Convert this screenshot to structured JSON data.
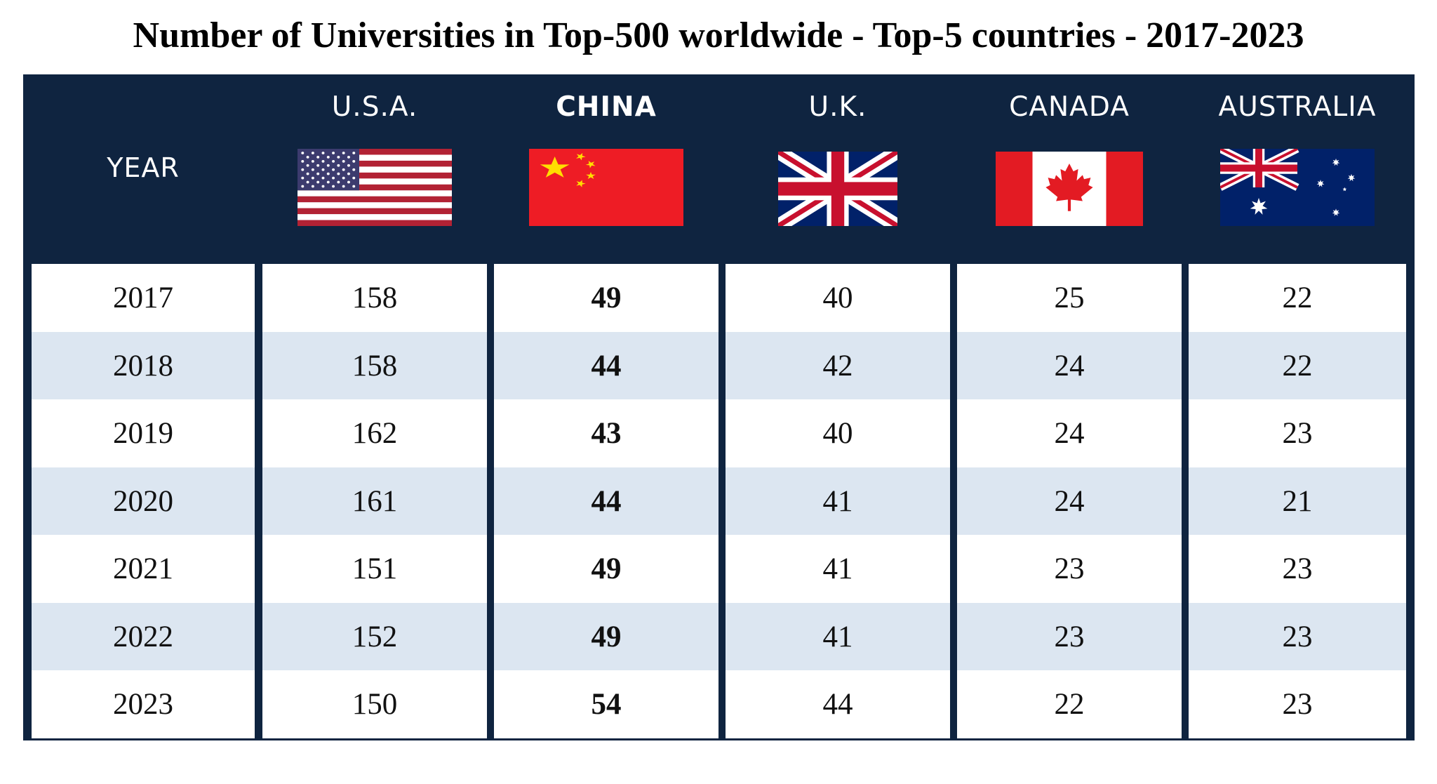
{
  "chart_data": {
    "type": "table",
    "title": "Number of Universities in Top-500 worldwide - Top-5 countries - 2017-2023",
    "columns": [
      {
        "key": "year",
        "label": "YEAR"
      },
      {
        "key": "usa",
        "label": "U.S.A.",
        "flag_icon": "usa-flag-icon"
      },
      {
        "key": "china",
        "label": "CHINA",
        "flag_icon": "china-flag-icon",
        "emphasized": true
      },
      {
        "key": "uk",
        "label": "U.K.",
        "flag_icon": "uk-flag-icon"
      },
      {
        "key": "canada",
        "label": "CANADA",
        "flag_icon": "canada-flag-icon"
      },
      {
        "key": "australia",
        "label": "AUSTRALIA",
        "flag_icon": "australia-flag-icon"
      }
    ],
    "rows": [
      {
        "year": "2017",
        "usa": 158,
        "china": 49,
        "uk": 40,
        "canada": 25,
        "australia": 22
      },
      {
        "year": "2018",
        "usa": 158,
        "china": 44,
        "uk": 42,
        "canada": 24,
        "australia": 22
      },
      {
        "year": "2019",
        "usa": 162,
        "china": 43,
        "uk": 40,
        "canada": 24,
        "australia": 23
      },
      {
        "year": "2020",
        "usa": 161,
        "china": 44,
        "uk": 41,
        "canada": 24,
        "australia": 21
      },
      {
        "year": "2021",
        "usa": 151,
        "china": 49,
        "uk": 41,
        "canada": 23,
        "australia": 23
      },
      {
        "year": "2022",
        "usa": 152,
        "china": 49,
        "uk": 41,
        "canada": 23,
        "australia": 23
      },
      {
        "year": "2023",
        "usa": 150,
        "china": 54,
        "uk": 44,
        "canada": 22,
        "australia": 23
      }
    ],
    "colors": {
      "header_background": "#0f2440",
      "header_text": "#ffffff",
      "row_odd": "#ffffff",
      "row_even": "#dce6f1",
      "body_text": "#111111"
    }
  }
}
